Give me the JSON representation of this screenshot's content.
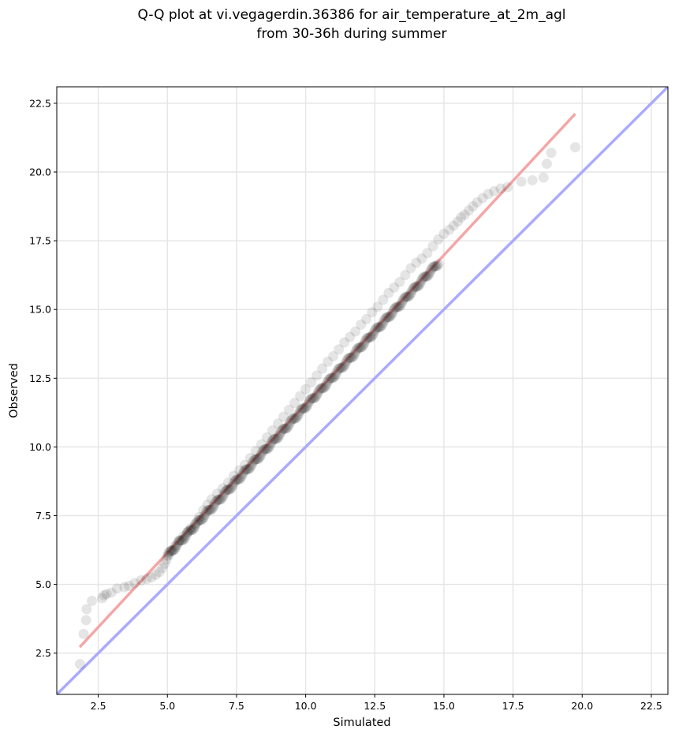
{
  "chart_data": {
    "type": "scatter",
    "title_lines": [
      "Q-Q plot at vi.vegagerdin.36386 for air_temperature_at_2m_agl",
      "from 30-36h during summer"
    ],
    "xlabel": "Simulated",
    "ylabel": "Observed",
    "xlim": [
      1.0,
      23.1
    ],
    "ylim": [
      1.0,
      23.1
    ],
    "x_ticks": [
      2.5,
      5.0,
      7.5,
      10.0,
      12.5,
      15.0,
      17.5,
      20.0,
      22.5
    ],
    "y_ticks": [
      2.5,
      5.0,
      7.5,
      10.0,
      12.5,
      15.0,
      17.5,
      20.0,
      22.5
    ],
    "x_tick_labels": [
      "2.5",
      "5.0",
      "7.5",
      "10.0",
      "12.5",
      "15.0",
      "17.5",
      "20.0",
      "22.5"
    ],
    "y_tick_labels": [
      "2.5",
      "5.0",
      "7.5",
      "10.0",
      "12.5",
      "15.0",
      "17.5",
      "20.0",
      "22.5"
    ],
    "grid": true,
    "reference_line": {
      "from": [
        1.0,
        1.0
      ],
      "to": [
        23.1,
        23.1
      ],
      "color": "#aaaaff"
    },
    "fit_line": {
      "from": [
        1.83,
        2.72
      ],
      "to": [
        19.75,
        22.12
      ],
      "color": "#f4a6a6"
    },
    "point_color": "#000000",
    "point_alpha": 0.1,
    "quantile_points": {
      "x": [
        1.84,
        1.97,
        2.06,
        2.08,
        2.27,
        2.64,
        2.71,
        2.8,
        2.97,
        3.18,
        3.45,
        3.61,
        3.82,
        4.05,
        4.25,
        4.42,
        4.58,
        4.71,
        4.82,
        4.9,
        4.97,
        5.05,
        5.15,
        5.28,
        5.42,
        5.58,
        5.72,
        5.86,
        6.0,
        6.15,
        6.3,
        6.45,
        6.6,
        6.8,
        7.0,
        7.2,
        7.4,
        7.6,
        7.8,
        8.0,
        8.2,
        8.4,
        8.6,
        8.8,
        9.0,
        9.2,
        9.4,
        9.6,
        9.8,
        10.0,
        10.2,
        10.4,
        10.6,
        10.8,
        11.0,
        11.2,
        11.4,
        11.6,
        11.8,
        12.0,
        12.2,
        12.4,
        12.6,
        12.8,
        13.0,
        13.2,
        13.4,
        13.6,
        13.8,
        14.0,
        14.2,
        14.4,
        14.6,
        14.8,
        15.0,
        15.2,
        15.35,
        15.5,
        15.62,
        15.75,
        15.9,
        16.05,
        16.2,
        16.4,
        16.6,
        16.82,
        17.05,
        17.3,
        17.8,
        18.2,
        18.6,
        18.72,
        18.88,
        19.75
      ],
      "y": [
        2.1,
        3.2,
        3.7,
        4.1,
        4.4,
        4.5,
        4.6,
        4.65,
        4.7,
        4.85,
        4.9,
        4.95,
        5.05,
        5.15,
        5.2,
        5.25,
        5.35,
        5.45,
        5.6,
        5.75,
        5.9,
        6.05,
        6.2,
        6.4,
        6.6,
        6.75,
        6.9,
        7.05,
        7.2,
        7.45,
        7.7,
        7.9,
        8.1,
        8.3,
        8.5,
        8.7,
        8.95,
        9.15,
        9.35,
        9.6,
        9.85,
        10.1,
        10.35,
        10.6,
        10.85,
        11.1,
        11.35,
        11.6,
        11.85,
        12.1,
        12.35,
        12.6,
        12.85,
        13.1,
        13.3,
        13.55,
        13.8,
        14.0,
        14.2,
        14.45,
        14.65,
        14.9,
        15.1,
        15.35,
        15.6,
        15.8,
        16.0,
        16.25,
        16.5,
        16.7,
        16.85,
        17.05,
        17.3,
        17.55,
        17.75,
        17.9,
        18.05,
        18.2,
        18.35,
        18.45,
        18.6,
        18.75,
        18.9,
        19.05,
        19.2,
        19.3,
        19.4,
        19.45,
        19.65,
        19.7,
        19.8,
        20.3,
        20.7,
        20.9
      ]
    }
  }
}
